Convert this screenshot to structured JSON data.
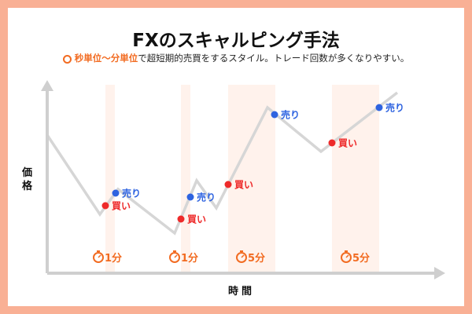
{
  "title": "FXのスキャルピング手法",
  "subtitle": {
    "highlight": "秒単位〜分単位",
    "rest": "で超短期的売買をするスタイル。トレード回数が多くなりやすい。"
  },
  "axes": {
    "y": "価格",
    "x": "時間"
  },
  "signals": {
    "buy": "買い",
    "sell": "売り"
  },
  "durations": [
    "1分",
    "1分",
    "5分",
    "5分"
  ],
  "colors": {
    "buy": "#ee2a2a",
    "sell": "#2e63e0",
    "accent": "#f26b21",
    "band": "#fff2ec",
    "line": "#d6d6d6",
    "border": "#f9b095"
  }
}
